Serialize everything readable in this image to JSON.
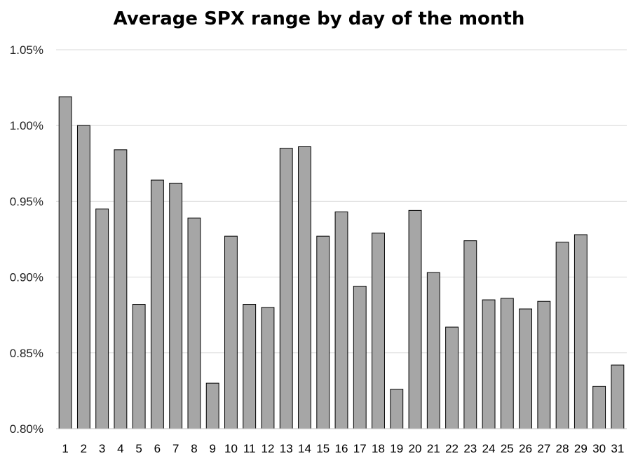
{
  "chart_data": {
    "type": "bar",
    "title": "Average SPX range by day of the month",
    "xlabel": "",
    "ylabel": "",
    "categories": [
      "1",
      "2",
      "3",
      "4",
      "5",
      "6",
      "7",
      "8",
      "9",
      "10",
      "11",
      "12",
      "13",
      "14",
      "15",
      "16",
      "17",
      "18",
      "19",
      "20",
      "21",
      "22",
      "23",
      "24",
      "25",
      "26",
      "27",
      "28",
      "29",
      "30",
      "31"
    ],
    "values": [
      1.019,
      1.0,
      0.945,
      0.984,
      0.882,
      0.964,
      0.962,
      0.939,
      0.83,
      0.927,
      0.882,
      0.88,
      0.985,
      0.986,
      0.927,
      0.943,
      0.894,
      0.929,
      0.826,
      0.944,
      0.903,
      0.867,
      0.924,
      0.885,
      0.886,
      0.879,
      0.884,
      0.923,
      0.928,
      0.828,
      0.842
    ],
    "value_unit": "%",
    "ylim": [
      0.8,
      1.05
    ],
    "yticks": [
      0.8,
      0.85,
      0.9,
      0.95,
      1.0,
      1.05
    ],
    "ytick_labels": [
      "0.80%",
      "0.85%",
      "0.90%",
      "0.95%",
      "1.00%",
      "1.05%"
    ],
    "grid": true,
    "legend": "none",
    "bar_color": "#a6a6a6",
    "bar_edge_color": "#000000",
    "grid_color": "#d9d9d9"
  }
}
